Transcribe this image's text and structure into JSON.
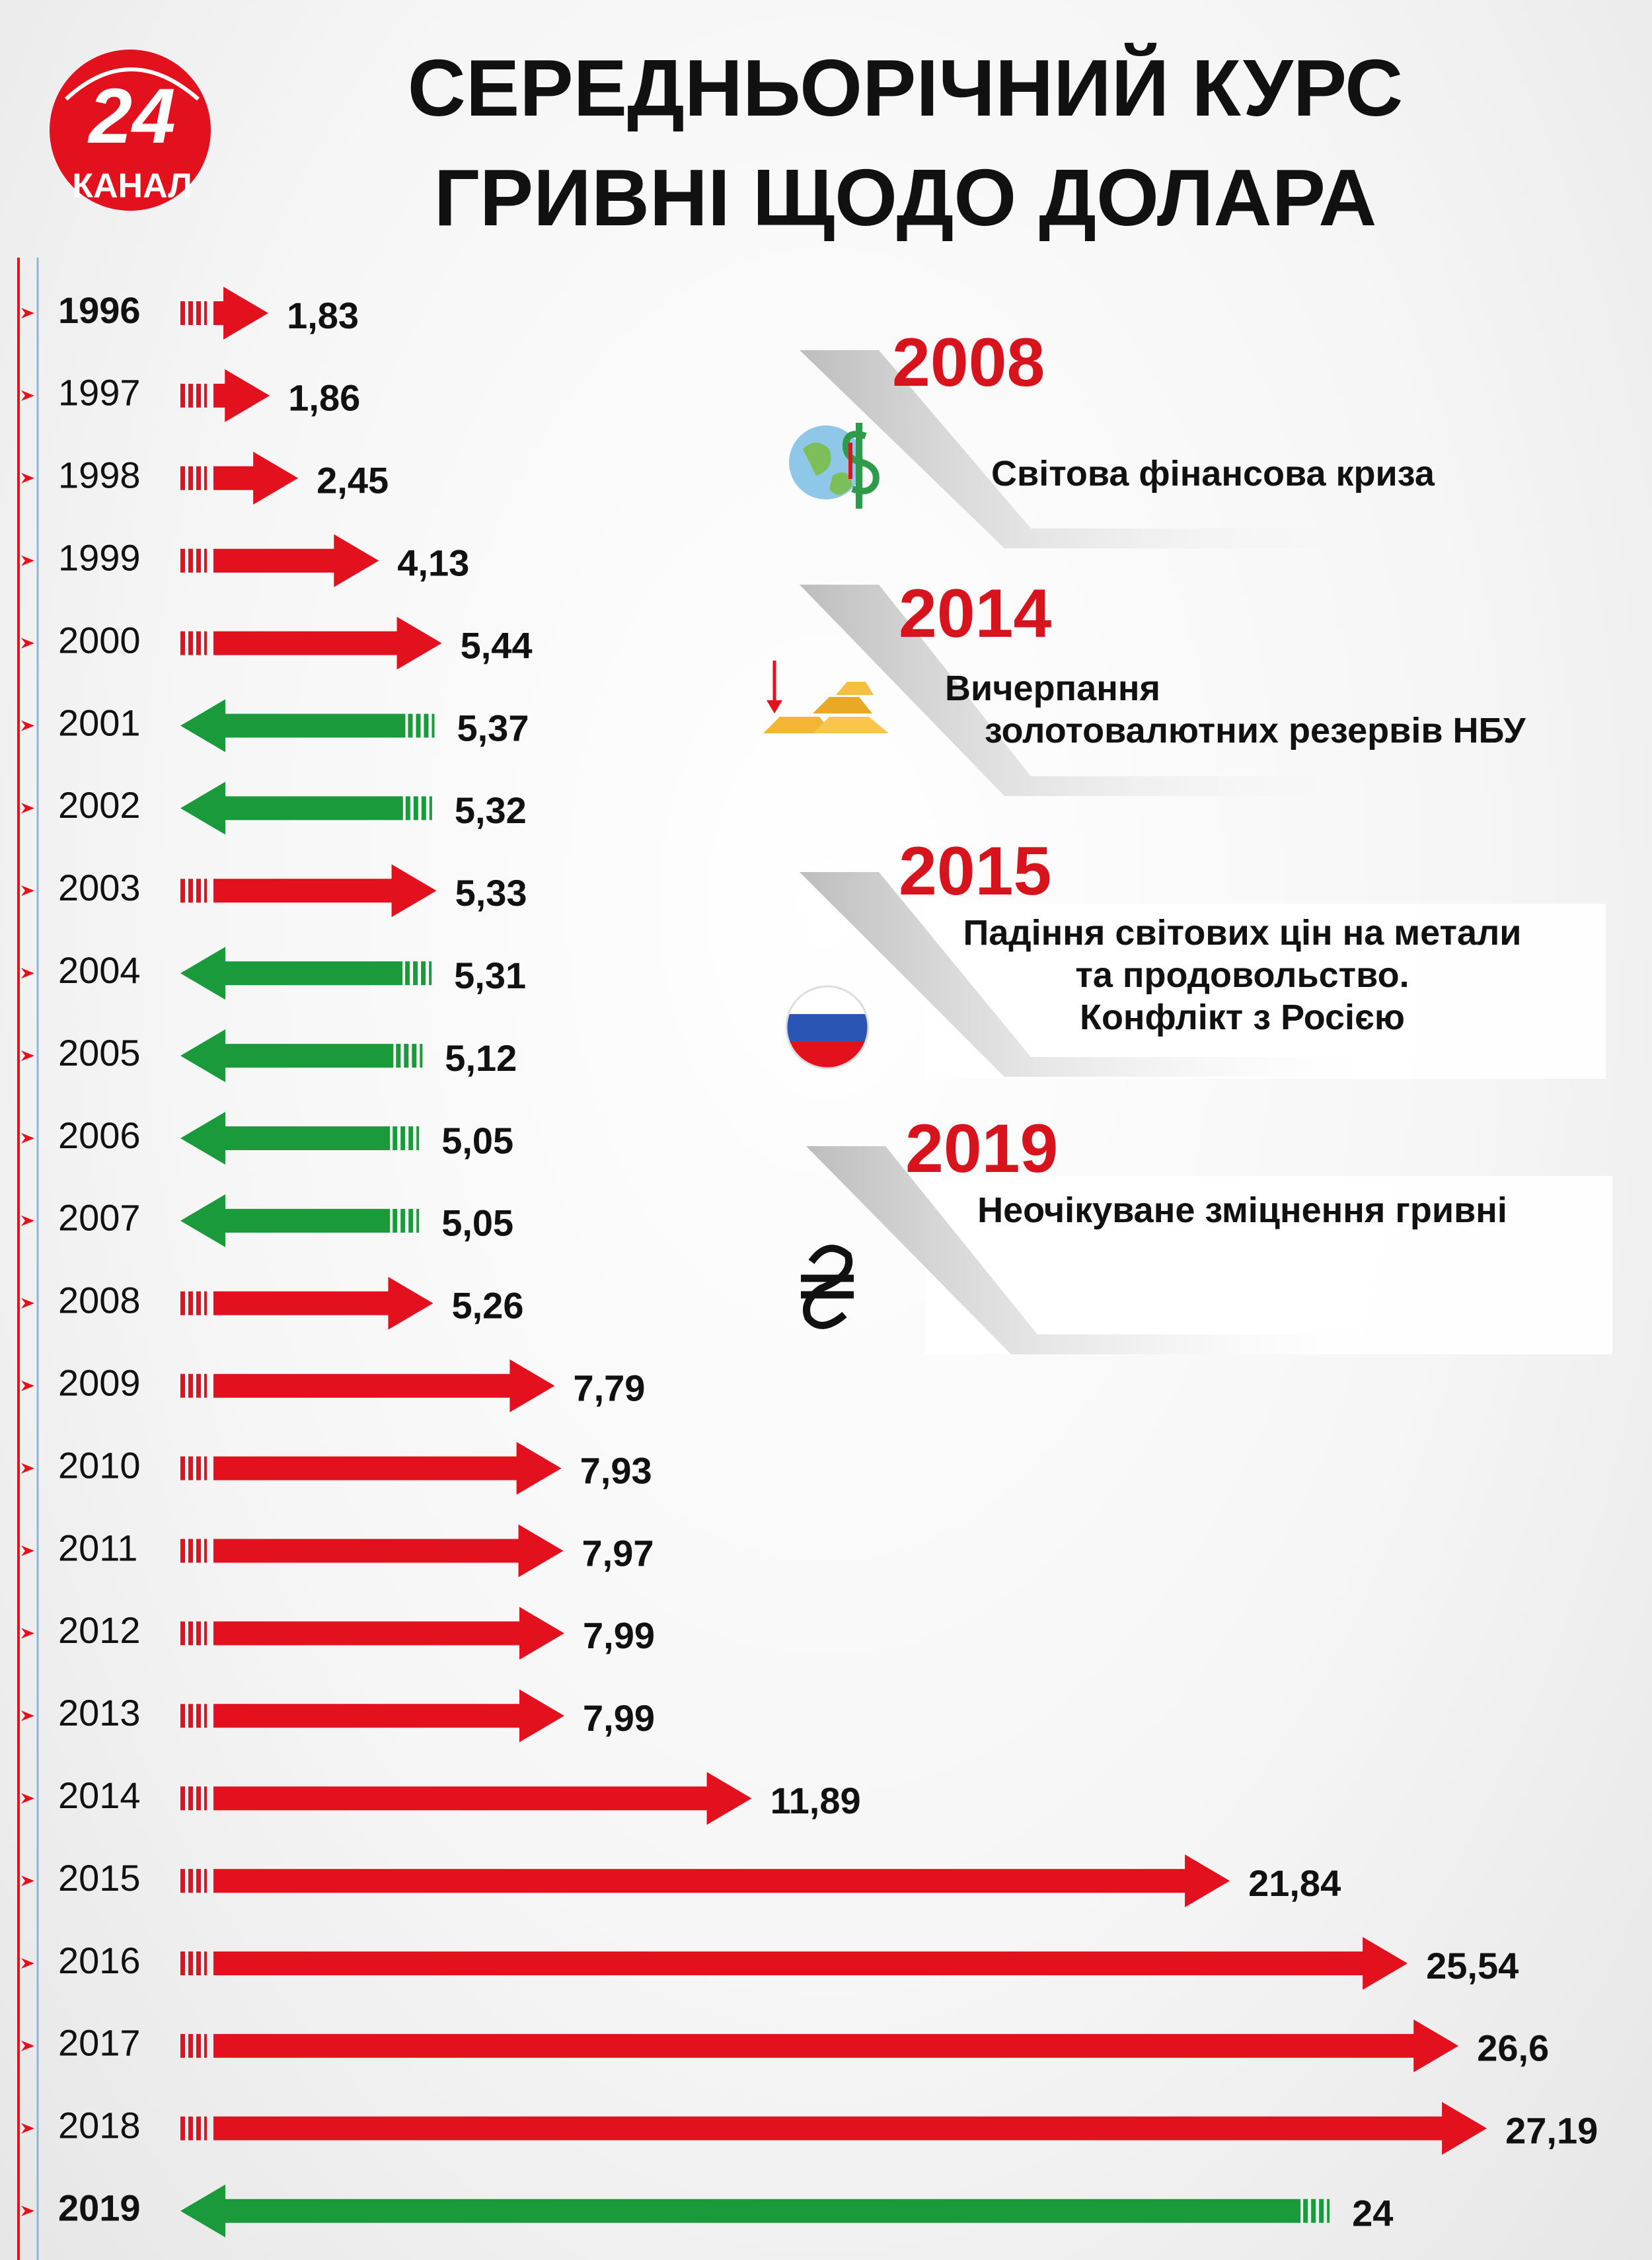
{
  "logo": {
    "number": "24",
    "channel": "КАНАЛ"
  },
  "chart_data": {
    "type": "arrow-bar",
    "title": "СЕРЕДНЬОРІЧНИЙ КУРС\nГРИВНІ ЩОДО ДОЛАРА",
    "categories": [
      "1996",
      "1997",
      "1998",
      "1999",
      "2000",
      "2001",
      "2002",
      "2003",
      "2004",
      "2005",
      "2006",
      "2007",
      "2008",
      "2009",
      "2010",
      "2011",
      "2012",
      "2013",
      "2014",
      "2015",
      "2016",
      "2017",
      "2018",
      "2019"
    ],
    "values": [
      1.83,
      1.86,
      2.45,
      4.13,
      5.44,
      5.37,
      5.32,
      5.33,
      5.31,
      5.12,
      5.05,
      5.05,
      5.26,
      7.79,
      7.93,
      7.97,
      7.99,
      7.99,
      11.89,
      21.84,
      25.54,
      26.6,
      27.19,
      24
    ],
    "value_labels": [
      "1,83",
      "1,86",
      "2,45",
      "4,13",
      "5,44",
      "5,37",
      "5,32",
      "5,33",
      "5,31",
      "5,12",
      "5,05",
      "5,05",
      "5,26",
      "7,79",
      "7,93",
      "7,97",
      "7,99",
      "7,99",
      "11,89",
      "21,84",
      "25,54",
      "26,6",
      "27,19",
      "24"
    ],
    "colors": [
      "#e3101d",
      "#e3101d",
      "#e3101d",
      "#e3101d",
      "#e3101d",
      "#1b9a3c",
      "#1b9a3c",
      "#e3101d",
      "#1b9a3c",
      "#1b9a3c",
      "#1b9a3c",
      "#1b9a3c",
      "#e3101d",
      "#e3101d",
      "#e3101d",
      "#e3101d",
      "#e3101d",
      "#e3101d",
      "#e3101d",
      "#e3101d",
      "#e3101d",
      "#e3101d",
      "#e3101d",
      "#1b9a3c"
    ],
    "directions": [
      "right",
      "right",
      "right",
      "right",
      "right",
      "left",
      "left",
      "right",
      "left",
      "left",
      "left",
      "left",
      "right",
      "right",
      "right",
      "right",
      "right",
      "right",
      "right",
      "right",
      "right",
      "right",
      "right",
      "left"
    ],
    "xlim": [
      0,
      28
    ],
    "annotations": [
      {
        "year": "2008",
        "text": "Світова фінансова криза"
      },
      {
        "year": "2014",
        "text": "Вичерпання\n    золотовалютних резервів НБУ"
      },
      {
        "year": "2015",
        "text": "Падіння світових цін на метали\nта продовольство.\nКонфлікт з Росією"
      },
      {
        "year": "2019",
        "text": "Неочікуване зміцнення гривні"
      }
    ]
  }
}
